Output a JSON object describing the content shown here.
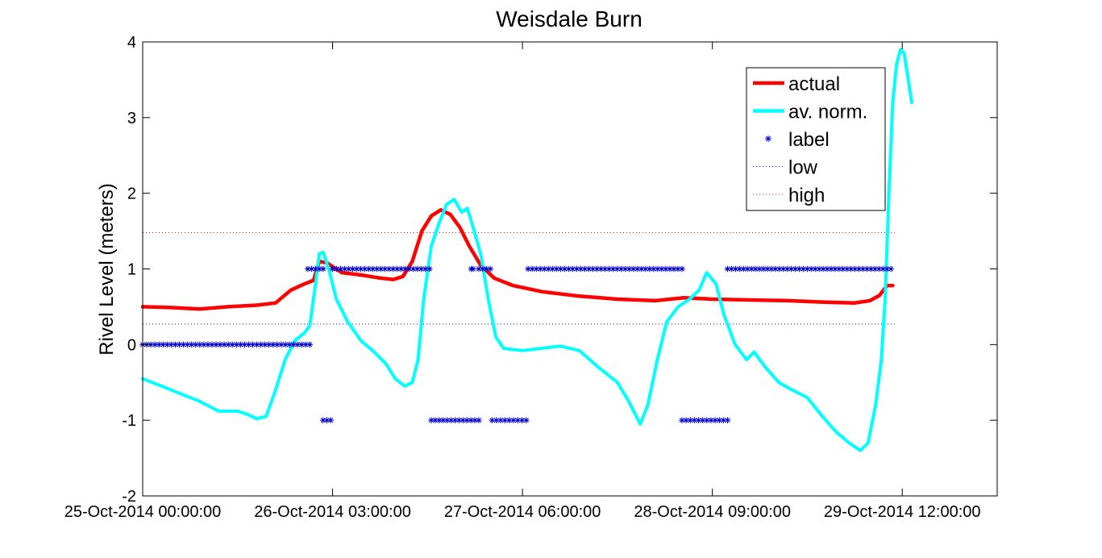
{
  "chart_data": {
    "type": "line",
    "title": "Weisdale Burn",
    "xlabel": "",
    "ylabel": "Rivel Level (meters)",
    "xlim": [
      0,
      4.5
    ],
    "ylim": [
      -2,
      4
    ],
    "x_ticks": [
      {
        "value": 0,
        "label": "25-Oct-2014 00:00:00"
      },
      {
        "value": 1,
        "label": "26-Oct-2014 03:00:00"
      },
      {
        "value": 2,
        "label": "27-Oct-2014 06:00:00"
      },
      {
        "value": 3,
        "label": "28-Oct-2014 09:00:00"
      },
      {
        "value": 4,
        "label": "29-Oct-2014 12:00:00"
      }
    ],
    "y_ticks": [
      {
        "value": 4,
        "label": "4"
      },
      {
        "value": 3,
        "label": "3"
      },
      {
        "value": 2,
        "label": "2"
      },
      {
        "value": 1,
        "label": "1"
      },
      {
        "value": 0,
        "label": "0"
      },
      {
        "value": -1,
        "label": "-1"
      },
      {
        "value": -2,
        "label": "-2"
      }
    ],
    "grid": false,
    "legend_position": "top-right",
    "legend": [
      {
        "name": "actual",
        "style": "line",
        "color": "#ff0000"
      },
      {
        "name": "av. norm.",
        "style": "line",
        "color": "#00ffff"
      },
      {
        "name": "label",
        "style": "marker",
        "color": "#0000cc"
      },
      {
        "name": "low",
        "style": "dotted",
        "color": "#0000cc"
      },
      {
        "name": "high",
        "style": "dotted",
        "color": "#ff0000"
      }
    ],
    "series": [
      {
        "name": "actual",
        "color": "#ff0000",
        "points": [
          [
            0,
            0.5
          ],
          [
            0.15,
            0.49
          ],
          [
            0.3,
            0.47
          ],
          [
            0.45,
            0.5
          ],
          [
            0.6,
            0.52
          ],
          [
            0.7,
            0.55
          ],
          [
            0.78,
            0.72
          ],
          [
            0.85,
            0.8
          ],
          [
            0.9,
            0.85
          ],
          [
            0.93,
            1.1
          ],
          [
            0.97,
            1.08
          ],
          [
            1.05,
            0.95
          ],
          [
            1.15,
            0.92
          ],
          [
            1.25,
            0.88
          ],
          [
            1.32,
            0.86
          ],
          [
            1.37,
            0.9
          ],
          [
            1.42,
            1.1
          ],
          [
            1.47,
            1.5
          ],
          [
            1.52,
            1.7
          ],
          [
            1.57,
            1.78
          ],
          [
            1.62,
            1.72
          ],
          [
            1.67,
            1.55
          ],
          [
            1.72,
            1.3
          ],
          [
            1.78,
            1.05
          ],
          [
            1.85,
            0.88
          ],
          [
            1.95,
            0.78
          ],
          [
            2.1,
            0.7
          ],
          [
            2.3,
            0.64
          ],
          [
            2.5,
            0.6
          ],
          [
            2.7,
            0.58
          ],
          [
            2.85,
            0.62
          ],
          [
            3.0,
            0.6
          ],
          [
            3.2,
            0.59
          ],
          [
            3.4,
            0.58
          ],
          [
            3.6,
            0.56
          ],
          [
            3.75,
            0.55
          ],
          [
            3.83,
            0.58
          ],
          [
            3.88,
            0.65
          ],
          [
            3.92,
            0.78
          ],
          [
            3.95,
            0.78
          ]
        ]
      },
      {
        "name": "av. norm.",
        "color": "#00ffff",
        "points": [
          [
            0,
            -0.45
          ],
          [
            0.1,
            -0.55
          ],
          [
            0.2,
            -0.65
          ],
          [
            0.3,
            -0.75
          ],
          [
            0.4,
            -0.88
          ],
          [
            0.5,
            -0.88
          ],
          [
            0.55,
            -0.92
          ],
          [
            0.6,
            -0.98
          ],
          [
            0.65,
            -0.95
          ],
          [
            0.7,
            -0.6
          ],
          [
            0.75,
            -0.2
          ],
          [
            0.8,
            0.05
          ],
          [
            0.85,
            0.15
          ],
          [
            0.88,
            0.25
          ],
          [
            0.91,
            0.8
          ],
          [
            0.93,
            1.2
          ],
          [
            0.95,
            1.22
          ],
          [
            0.98,
            1.0
          ],
          [
            1.02,
            0.6
          ],
          [
            1.08,
            0.3
          ],
          [
            1.15,
            0.05
          ],
          [
            1.22,
            -0.1
          ],
          [
            1.28,
            -0.25
          ],
          [
            1.33,
            -0.45
          ],
          [
            1.38,
            -0.55
          ],
          [
            1.42,
            -0.5
          ],
          [
            1.45,
            -0.2
          ],
          [
            1.48,
            0.6
          ],
          [
            1.52,
            1.3
          ],
          [
            1.56,
            1.6
          ],
          [
            1.6,
            1.85
          ],
          [
            1.64,
            1.92
          ],
          [
            1.68,
            1.75
          ],
          [
            1.71,
            1.8
          ],
          [
            1.74,
            1.55
          ],
          [
            1.78,
            1.2
          ],
          [
            1.82,
            0.6
          ],
          [
            1.86,
            0.1
          ],
          [
            1.9,
            -0.05
          ],
          [
            2.0,
            -0.08
          ],
          [
            2.1,
            -0.05
          ],
          [
            2.2,
            -0.02
          ],
          [
            2.3,
            -0.08
          ],
          [
            2.4,
            -0.3
          ],
          [
            2.5,
            -0.5
          ],
          [
            2.56,
            -0.75
          ],
          [
            2.62,
            -1.05
          ],
          [
            2.66,
            -0.8
          ],
          [
            2.71,
            -0.2
          ],
          [
            2.76,
            0.3
          ],
          [
            2.82,
            0.5
          ],
          [
            2.88,
            0.6
          ],
          [
            2.93,
            0.72
          ],
          [
            2.97,
            0.95
          ],
          [
            3.02,
            0.8
          ],
          [
            3.06,
            0.4
          ],
          [
            3.12,
            0.0
          ],
          [
            3.18,
            -0.2
          ],
          [
            3.22,
            -0.1
          ],
          [
            3.28,
            -0.3
          ],
          [
            3.35,
            -0.5
          ],
          [
            3.42,
            -0.6
          ],
          [
            3.5,
            -0.7
          ],
          [
            3.58,
            -0.95
          ],
          [
            3.65,
            -1.15
          ],
          [
            3.72,
            -1.3
          ],
          [
            3.78,
            -1.4
          ],
          [
            3.82,
            -1.3
          ],
          [
            3.86,
            -0.8
          ],
          [
            3.89,
            -0.2
          ],
          [
            3.91,
            0.6
          ],
          [
            3.93,
            2.0
          ],
          [
            3.95,
            3.2
          ],
          [
            3.97,
            3.7
          ],
          [
            3.99,
            3.9
          ],
          [
            4.01,
            3.85
          ],
          [
            4.05,
            3.2
          ]
        ]
      },
      {
        "name": "label",
        "color": "#0000cc",
        "marker": "*",
        "segments": [
          {
            "x_start": 0.0,
            "x_end": 0.88,
            "y": 0
          },
          {
            "x_start": 0.87,
            "x_end": 0.95,
            "y": 1
          },
          {
            "x_start": 0.95,
            "x_end": 0.99,
            "y": -1
          },
          {
            "x_start": 1.0,
            "x_end": 1.51,
            "y": 1
          },
          {
            "x_start": 1.52,
            "x_end": 1.77,
            "y": -1
          },
          {
            "x_start": 1.73,
            "x_end": 1.74,
            "y": 1
          },
          {
            "x_start": 1.77,
            "x_end": 1.83,
            "y": 1
          },
          {
            "x_start": 1.84,
            "x_end": 2.02,
            "y": -1
          },
          {
            "x_start": 2.03,
            "x_end": 2.84,
            "y": 1
          },
          {
            "x_start": 2.84,
            "x_end": 3.08,
            "y": -1
          },
          {
            "x_start": 3.08,
            "x_end": 3.94,
            "y": 1
          }
        ]
      },
      {
        "name": "low",
        "color": "#0000cc",
        "style": "dotted",
        "y": 0.27,
        "x_start": 0,
        "x_end": 3.96
      },
      {
        "name": "high",
        "color": "#ff0000",
        "style": "dotted",
        "y": 1.48,
        "x_start": 0,
        "x_end": 3.96
      }
    ]
  }
}
